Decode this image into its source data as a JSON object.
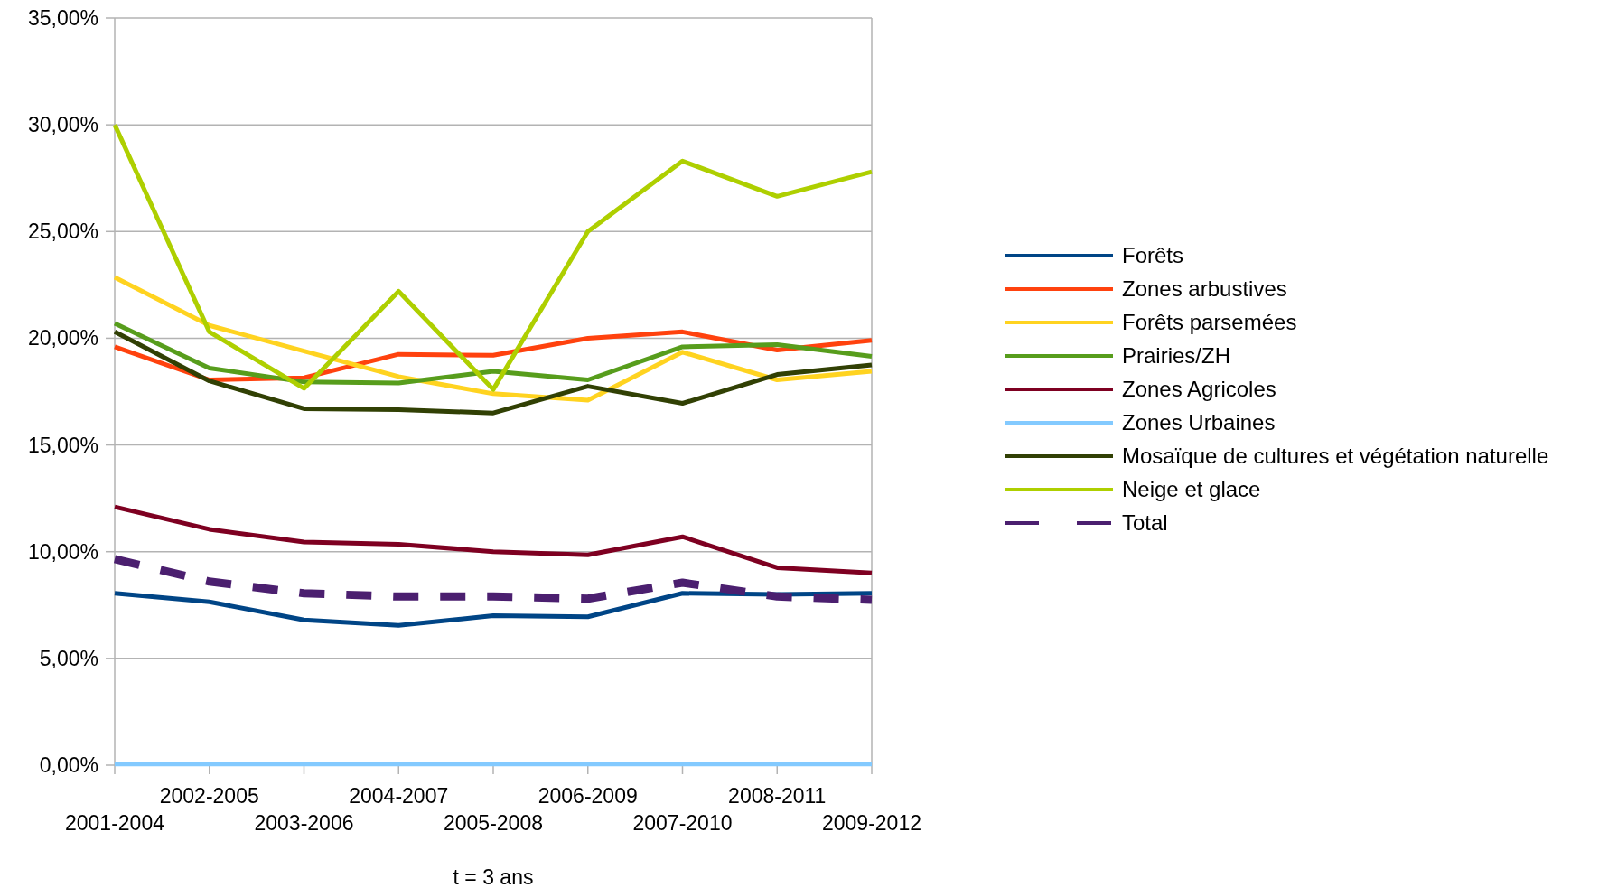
{
  "chart_data": {
    "type": "line",
    "xlabel": "t = 3 ans",
    "categories": [
      "2001-2004",
      "2002-2005",
      "2003-2006",
      "2004-2007",
      "2005-2008",
      "2006-2009",
      "2007-2010",
      "2008-2011",
      "2009-2012"
    ],
    "ylim": [
      0,
      35
    ],
    "yticks": [
      {
        "value": 0,
        "label": "0,00%"
      },
      {
        "value": 5,
        "label": "5,00%"
      },
      {
        "value": 10,
        "label": "10,00%"
      },
      {
        "value": 15,
        "label": "15,00%"
      },
      {
        "value": 20,
        "label": "20,00%"
      },
      {
        "value": 25,
        "label": "25,00%"
      },
      {
        "value": 30,
        "label": "30,00%"
      },
      {
        "value": 35,
        "label": "35,00%"
      }
    ],
    "grid": "y",
    "legend": "right",
    "line_style": "solid",
    "marker": "none",
    "series": [
      {
        "name": "Forêts",
        "color": "#004586",
        "values": [
          8.05,
          7.65,
          6.8,
          6.55,
          7.0,
          6.95,
          8.05,
          8.0,
          8.05
        ]
      },
      {
        "name": "Zones arbustives",
        "color": "#ff420e",
        "values": [
          19.6,
          18.05,
          18.15,
          19.25,
          19.2,
          20.0,
          20.3,
          19.45,
          19.9
        ]
      },
      {
        "name": "Forêts parsemées",
        "color": "#ffd320",
        "values": [
          22.85,
          20.6,
          19.4,
          18.2,
          17.4,
          17.1,
          19.35,
          18.05,
          18.45
        ]
      },
      {
        "name": "Prairies/ZH",
        "color": "#579d1c",
        "values": [
          20.7,
          18.6,
          17.95,
          17.9,
          18.45,
          18.05,
          19.6,
          19.7,
          19.15
        ]
      },
      {
        "name": "Zones Agricoles",
        "color": "#7e0021",
        "values": [
          12.1,
          11.05,
          10.45,
          10.35,
          10.0,
          9.85,
          10.7,
          9.25,
          9.0
        ]
      },
      {
        "name": "Zones Urbaines",
        "color": "#83caff",
        "values": [
          0.05,
          0.05,
          0.05,
          0.05,
          0.05,
          0.05,
          0.05,
          0.05,
          0.05
        ]
      },
      {
        "name": "Mosaïque de cultures et végétation naturelle",
        "color": "#314004",
        "values": [
          20.3,
          18.0,
          16.7,
          16.65,
          16.5,
          17.75,
          16.95,
          18.3,
          18.75
        ]
      },
      {
        "name": "Neige et glace",
        "color": "#aecf00",
        "values": [
          30.0,
          20.3,
          17.65,
          22.2,
          17.6,
          25.0,
          28.3,
          26.65,
          27.8
        ]
      },
      {
        "name": "Total",
        "color": "#4b1f6f",
        "line_style": "dashed",
        "values": [
          9.65,
          8.6,
          8.05,
          7.9,
          7.9,
          7.8,
          8.55,
          7.9,
          7.75
        ]
      }
    ]
  }
}
